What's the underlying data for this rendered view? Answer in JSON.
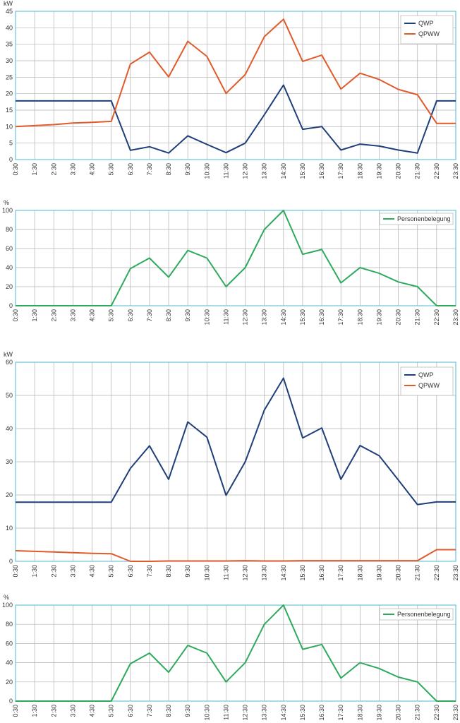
{
  "colors": {
    "qwp": "#1f3f7a",
    "qpww": "#e05a2b",
    "person": "#2eaa5c",
    "frame": "#6cc3d8",
    "grid": "#b0b0b0"
  },
  "x_labels": [
    "0:30",
    "1:30",
    "2:30",
    "3:30",
    "4:30",
    "5:30",
    "6:30",
    "7:30",
    "8:30",
    "9:30",
    "10:30",
    "11:30",
    "12:30",
    "13:30",
    "14:30",
    "15:30",
    "16:30",
    "17:30",
    "18:30",
    "19:30",
    "20:30",
    "21:30",
    "22:30",
    "23:30"
  ],
  "chart_data": [
    {
      "type": "line",
      "ylabel": "kW",
      "ylim": [
        0,
        45
      ],
      "yticks": [
        0,
        5,
        10,
        15,
        20,
        25,
        30,
        35,
        40,
        45
      ],
      "grid": true,
      "legend_placement": "top-right",
      "series": [
        {
          "name": "QWP",
          "color": "#1f3f7a",
          "values": [
            17.8,
            17.8,
            17.8,
            17.8,
            17.8,
            17.8,
            2.8,
            3.9,
            2.0,
            7.2,
            4.6,
            2.1,
            5.0,
            13.6,
            22.6,
            9.2,
            10.0,
            2.9,
            4.7,
            4.1,
            2.9,
            2.0,
            17.8,
            17.8
          ]
        },
        {
          "name": "QPWW",
          "color": "#e05a2b",
          "values": [
            10.0,
            10.3,
            10.6,
            11.1,
            11.3,
            11.6,
            29.0,
            32.6,
            25.1,
            35.9,
            31.3,
            20.1,
            25.8,
            37.3,
            42.6,
            29.8,
            31.7,
            21.4,
            26.2,
            24.3,
            21.3,
            19.7,
            11.0,
            11.0
          ]
        }
      ]
    },
    {
      "type": "line",
      "ylabel": "%",
      "ylim": [
        0,
        100
      ],
      "yticks": [
        0,
        20,
        40,
        60,
        80,
        100
      ],
      "grid": true,
      "legend_placement": "top-right",
      "series": [
        {
          "name": "Personenbelegung",
          "color": "#2eaa5c",
          "values": [
            0,
            0,
            0,
            0,
            0,
            0,
            39,
            50,
            30,
            58,
            50,
            20,
            40,
            80,
            100,
            54,
            59,
            24,
            40,
            34,
            25,
            20,
            0,
            0
          ]
        }
      ]
    },
    {
      "type": "line",
      "ylabel": "kW",
      "ylim": [
        0,
        60
      ],
      "yticks": [
        0,
        10,
        20,
        30,
        40,
        50,
        60
      ],
      "grid": true,
      "legend_placement": "top-right",
      "series": [
        {
          "name": "QWP",
          "color": "#1f3f7a",
          "values": [
            17.8,
            17.8,
            17.8,
            17.8,
            17.8,
            17.8,
            28.0,
            34.8,
            24.7,
            42.0,
            37.4,
            19.9,
            30.0,
            45.6,
            55.2,
            37.2,
            40.2,
            24.7,
            34.9,
            31.8,
            24.5,
            17.1,
            17.9,
            17.9
          ]
        },
        {
          "name": "QPWW",
          "color": "#e05a2b",
          "values": [
            3.2,
            3.0,
            2.8,
            2.6,
            2.4,
            2.3,
            0,
            0,
            0.1,
            0.1,
            0.1,
            0.1,
            0.2,
            0.1,
            0.1,
            0.2,
            0.2,
            0.2,
            0.2,
            0.2,
            0.2,
            0.2,
            3.5,
            3.5
          ]
        }
      ]
    },
    {
      "type": "line",
      "ylabel": "%",
      "ylim": [
        0,
        100
      ],
      "yticks": [
        0,
        20,
        40,
        60,
        80,
        100
      ],
      "grid": true,
      "legend_placement": "top-right",
      "series": [
        {
          "name": "Personenbelegung",
          "color": "#2eaa5c",
          "values": [
            0,
            0,
            0,
            0,
            0,
            0,
            39,
            50,
            30,
            58,
            50,
            20,
            40,
            80,
            100,
            54,
            59,
            24,
            40,
            34,
            25,
            20,
            0,
            0
          ]
        }
      ]
    }
  ]
}
